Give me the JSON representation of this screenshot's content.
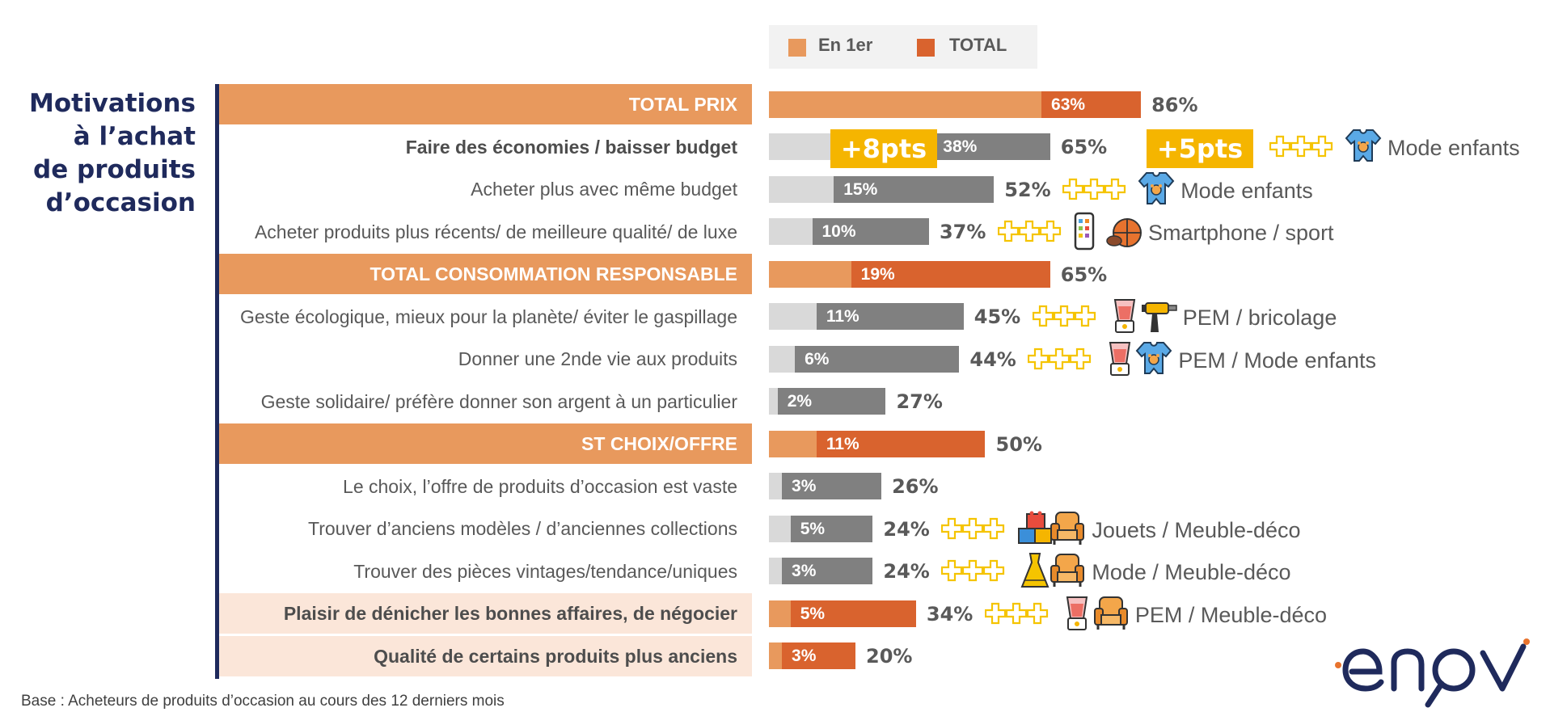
{
  "title_lines": [
    "Motivations",
    "à l’achat",
    "de produits",
    "d’occasion"
  ],
  "legend": [
    {
      "label": "En 1er",
      "color": "#e8995d"
    },
    {
      "label": "TOTAL",
      "color": "#d9632e"
    }
  ],
  "deltas": {
    "first": "+8pts",
    "total": "+5pts"
  },
  "footnote": "Base : Acheteurs de produits d’occasion au cours des 12 derniers mois",
  "colors": {
    "total_first": "#e8995d",
    "total_total": "#d9632e",
    "item_first": "#d9d9d9",
    "item_total": "#808080",
    "navy": "#1f2a5c",
    "accent": "#f5b500"
  },
  "chart_data": {
    "type": "bar",
    "orientation": "horizontal",
    "stacked_overlay": true,
    "series": [
      {
        "name": "En 1er"
      },
      {
        "name": "TOTAL"
      }
    ],
    "rows": [
      {
        "label": "TOTAL PRIX",
        "kind": "total",
        "first": 63,
        "total": 86,
        "first_label": "63%",
        "total_label": "86%"
      },
      {
        "label": "Faire des économies / baisser budget",
        "kind": "item-bold",
        "first": 38,
        "total": 65,
        "first_label": "38%",
        "total_label": "65%",
        "category": "Mode enfants",
        "icons": [
          "baby-onesie-icon"
        ]
      },
      {
        "label": "Acheter plus avec même budget",
        "kind": "item",
        "first": 15,
        "total": 52,
        "first_label": "15%",
        "total_label": "52%",
        "category": "Mode enfants",
        "icons": [
          "baby-onesie-icon"
        ]
      },
      {
        "label": "Acheter produits plus récents/ de meilleure qualité/ de luxe",
        "kind": "item",
        "first": 10,
        "total": 37,
        "first_label": "10%",
        "total_label": "37%",
        "category": "Smartphone / sport",
        "icons": [
          "smartphone-icon",
          "sport-balls-icon"
        ]
      },
      {
        "label": "TOTAL CONSOMMATION RESPONSABLE",
        "kind": "total",
        "first": 19,
        "total": 65,
        "first_label": "19%",
        "total_label": "65%"
      },
      {
        "label": "Geste écologique, mieux pour la planète/ éviter le gaspillage",
        "kind": "item",
        "first": 11,
        "total": 45,
        "first_label": "11%",
        "total_label": "45%",
        "category": "PEM / bricolage",
        "icons": [
          "blender-icon",
          "drill-icon"
        ]
      },
      {
        "label": "Donner une 2nde vie aux produits",
        "kind": "item",
        "first": 6,
        "total": 44,
        "first_label": "6%",
        "total_label": "44%",
        "category": "PEM / Mode enfants",
        "icons": [
          "blender-icon",
          "baby-onesie-icon"
        ]
      },
      {
        "label": "Geste solidaire/ préfère donner son argent à un particulier",
        "kind": "item",
        "first": 2,
        "total": 27,
        "first_label": "2%",
        "total_label": "27%"
      },
      {
        "label": "ST CHOIX/OFFRE",
        "kind": "total",
        "first": 11,
        "total": 50,
        "first_label": "11%",
        "total_label": "50%"
      },
      {
        "label": "Le choix, l’offre de produits d’occasion est vaste",
        "kind": "item",
        "first": 3,
        "total": 26,
        "first_label": "3%",
        "total_label": "26%"
      },
      {
        "label": "Trouver d’anciens modèles / d’anciennes collections",
        "kind": "item",
        "first": 5,
        "total": 24,
        "first_label": "5%",
        "total_label": "24%",
        "category": "Jouets / Meuble-déco",
        "icons": [
          "toy-blocks-icon",
          "armchair-icon"
        ]
      },
      {
        "label": "Trouver des pièces vintages/tendance/uniques",
        "kind": "item",
        "first": 3,
        "total": 24,
        "first_label": "3%",
        "total_label": "24%",
        "category": "Mode / Meuble-déco",
        "icons": [
          "dress-icon",
          "armchair-icon"
        ]
      },
      {
        "label": "Plaisir de dénicher les bonnes affaires, de négocier",
        "kind": "highlight",
        "first": 5,
        "total": 34,
        "first_label": "5%",
        "total_label": "34%",
        "category": "PEM / Meuble-déco",
        "icons": [
          "blender-icon",
          "armchair-icon"
        ]
      },
      {
        "label": "Qualité de certains produits plus anciens",
        "kind": "highlight",
        "first": 3,
        "total": 20,
        "first_label": "3%",
        "total_label": "20%"
      }
    ]
  }
}
